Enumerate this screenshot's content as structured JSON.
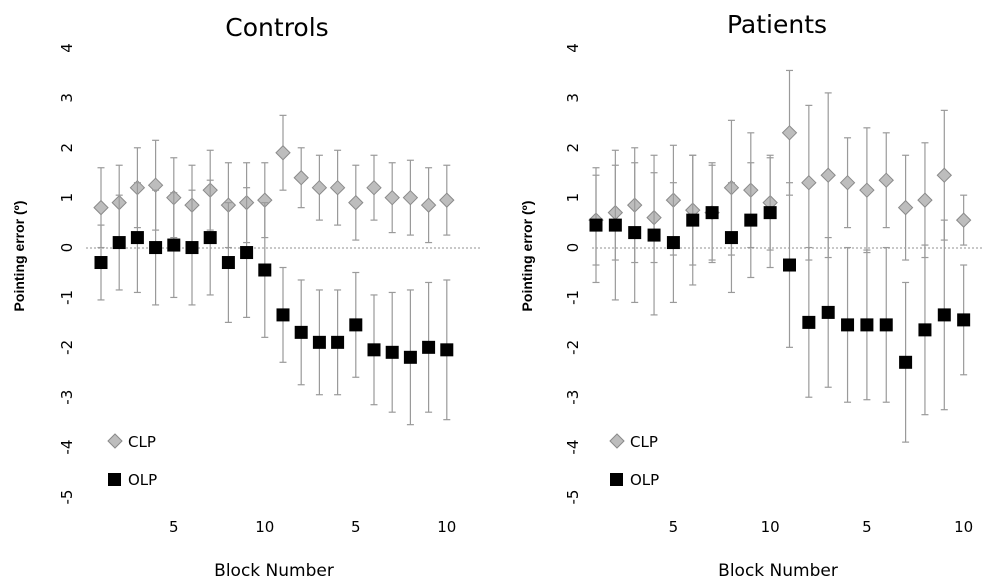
{
  "chart_data": [
    {
      "type": "scatter",
      "title": "Controls",
      "xlabel": "Block Number",
      "ylabel": "Pointing error (º)",
      "ylim": [
        -5,
        4
      ],
      "y_ticks": [
        "-5",
        "-4",
        "-3",
        "-2",
        "-1",
        "0",
        "1",
        "2",
        "3",
        "4"
      ],
      "x_tick_labels": [
        {
          "block": 5,
          "label": "5"
        },
        {
          "block": 10,
          "label": "10"
        },
        {
          "block": 15,
          "label": "5"
        },
        {
          "block": 20,
          "label": "10"
        }
      ],
      "x": [
        1,
        2,
        3,
        4,
        5,
        6,
        7,
        8,
        9,
        10,
        11,
        12,
        13,
        14,
        15,
        16,
        17,
        18,
        19,
        20
      ],
      "legend": {
        "placement": "bottom-left"
      },
      "series": [
        {
          "name": "CLP",
          "marker": "diamond",
          "color": "#bdbdbd",
          "values": [
            0.8,
            0.9,
            1.2,
            1.25,
            1.0,
            0.85,
            1.15,
            0.85,
            0.9,
            0.95,
            1.9,
            1.4,
            1.2,
            1.2,
            0.9,
            1.2,
            1.0,
            1.0,
            0.85,
            0.95
          ],
          "error": [
            0.8,
            0.75,
            0.8,
            0.9,
            0.8,
            0.8,
            0.8,
            0.85,
            0.8,
            0.75,
            0.75,
            0.6,
            0.65,
            0.75,
            0.75,
            0.65,
            0.7,
            0.75,
            0.75,
            0.7
          ]
        },
        {
          "name": "OLP",
          "marker": "square",
          "color": "#000000",
          "values": [
            -0.3,
            0.1,
            0.2,
            0.0,
            0.05,
            0.0,
            0.2,
            -0.3,
            -0.1,
            -0.45,
            -1.35,
            -1.7,
            -1.9,
            -1.9,
            -1.55,
            -2.05,
            -2.1,
            -2.2,
            -2.0,
            -2.05
          ],
          "error": [
            0.75,
            0.95,
            1.1,
            1.15,
            1.05,
            1.15,
            1.15,
            1.2,
            1.3,
            1.35,
            0.95,
            1.05,
            1.05,
            1.05,
            1.05,
            1.1,
            1.2,
            1.35,
            1.3,
            1.4
          ]
        }
      ]
    },
    {
      "type": "scatter",
      "title": "Patients",
      "xlabel": "Block Number",
      "ylabel": "Pointing error (º)",
      "ylim": [
        -5,
        4
      ],
      "y_ticks": [
        "-5",
        "-4",
        "-3",
        "-2",
        "-1",
        "0",
        "1",
        "2",
        "3",
        "4"
      ],
      "x_tick_labels": [
        {
          "block": 5,
          "label": "5"
        },
        {
          "block": 10,
          "label": "10"
        },
        {
          "block": 15,
          "label": "5"
        },
        {
          "block": 20,
          "label": "10"
        }
      ],
      "x": [
        1,
        2,
        3,
        4,
        5,
        6,
        7,
        8,
        9,
        10,
        11,
        12,
        13,
        14,
        15,
        16,
        17,
        18,
        19,
        20
      ],
      "legend": {
        "placement": "bottom-left"
      },
      "series": [
        {
          "name": "CLP",
          "marker": "diamond",
          "color": "#bdbdbd",
          "values": [
            0.55,
            0.7,
            0.85,
            0.6,
            0.95,
            0.75,
            0.7,
            1.2,
            1.15,
            0.9,
            2.3,
            1.3,
            1.45,
            1.3,
            1.15,
            1.35,
            0.8,
            0.95,
            1.45,
            0.55
          ],
          "error": [
            0.9,
            0.95,
            1.15,
            0.9,
            1.1,
            1.1,
            1.0,
            1.35,
            1.15,
            0.95,
            1.25,
            1.55,
            1.65,
            0.9,
            1.25,
            0.95,
            1.05,
            1.15,
            1.3,
            0.5
          ]
        },
        {
          "name": "OLP",
          "marker": "square",
          "color": "#000000",
          "values": [
            0.45,
            0.45,
            0.3,
            0.25,
            0.1,
            0.55,
            0.7,
            0.2,
            0.55,
            0.7,
            -0.35,
            -1.5,
            -1.3,
            -1.55,
            -1.55,
            -1.55,
            -2.3,
            -1.65,
            -1.35,
            -1.45
          ],
          "error": [
            1.15,
            1.5,
            1.4,
            1.6,
            1.2,
            1.3,
            0.95,
            1.1,
            1.15,
            1.1,
            1.65,
            1.5,
            1.5,
            1.55,
            1.5,
            1.55,
            1.6,
            1.7,
            1.9,
            1.1
          ]
        }
      ]
    }
  ]
}
